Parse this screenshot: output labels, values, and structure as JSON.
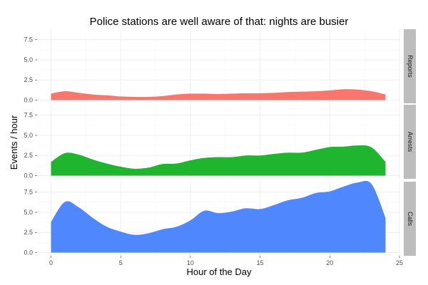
{
  "chart_data": {
    "type": "area",
    "title": "Police stations are well aware of that: nights are busier",
    "xlabel": "Hour of the Day",
    "ylabel": "Events / hour",
    "xlim": [
      -1,
      25
    ],
    "ylim": [
      -0.4,
      8.8
    ],
    "x_ticks": [
      0,
      5,
      10,
      15,
      20,
      25
    ],
    "x_tick_labels": [
      "0",
      "5",
      "10",
      "15",
      "20",
      "25"
    ],
    "y_ticks": [
      0,
      2.5,
      5,
      7.5
    ],
    "y_tick_labels": [
      "0.0",
      "2.5",
      "5.0",
      "7.5"
    ],
    "grid": true,
    "legend": "none",
    "facets": [
      "Reports",
      "Arrests",
      "Calls"
    ],
    "series": [
      {
        "name": "Reports",
        "color": "#F8766D",
        "x": [
          0,
          1,
          2,
          3,
          4,
          5,
          6,
          7,
          8,
          9,
          10,
          11,
          12,
          13,
          14,
          15,
          16,
          17,
          18,
          19,
          20,
          21,
          22,
          23,
          24
        ],
        "values": [
          0.8,
          1.1,
          0.9,
          0.7,
          0.6,
          0.45,
          0.4,
          0.4,
          0.5,
          0.7,
          0.8,
          0.8,
          0.75,
          0.8,
          0.85,
          0.85,
          0.9,
          1.0,
          1.05,
          1.1,
          1.2,
          1.35,
          1.3,
          1.1,
          0.7
        ]
      },
      {
        "name": "Arrests",
        "color": "#1FB52E",
        "x": [
          0,
          1,
          2,
          3,
          4,
          5,
          6,
          7,
          8,
          9,
          10,
          11,
          12,
          13,
          14,
          15,
          16,
          17,
          18,
          19,
          20,
          21,
          22,
          23,
          24
        ],
        "values": [
          1.7,
          2.8,
          2.6,
          2.0,
          1.5,
          1.1,
          0.85,
          1.0,
          1.45,
          1.5,
          1.9,
          2.2,
          2.3,
          2.3,
          2.5,
          2.5,
          2.7,
          2.85,
          2.85,
          3.2,
          3.55,
          3.6,
          3.75,
          3.5,
          1.7
        ]
      },
      {
        "name": "Calls",
        "color": "#4F87FF",
        "x": [
          0,
          1,
          2,
          3,
          4,
          5,
          6,
          7,
          8,
          9,
          10,
          11,
          12,
          13,
          14,
          15,
          16,
          17,
          18,
          19,
          20,
          21,
          22,
          23,
          24
        ],
        "values": [
          3.8,
          6.3,
          5.6,
          4.3,
          3.2,
          2.6,
          2.2,
          2.4,
          2.9,
          3.2,
          4.0,
          5.2,
          4.9,
          5.1,
          5.5,
          5.4,
          5.9,
          6.5,
          6.8,
          7.4,
          7.6,
          8.2,
          8.7,
          8.5,
          4.3
        ]
      }
    ]
  }
}
